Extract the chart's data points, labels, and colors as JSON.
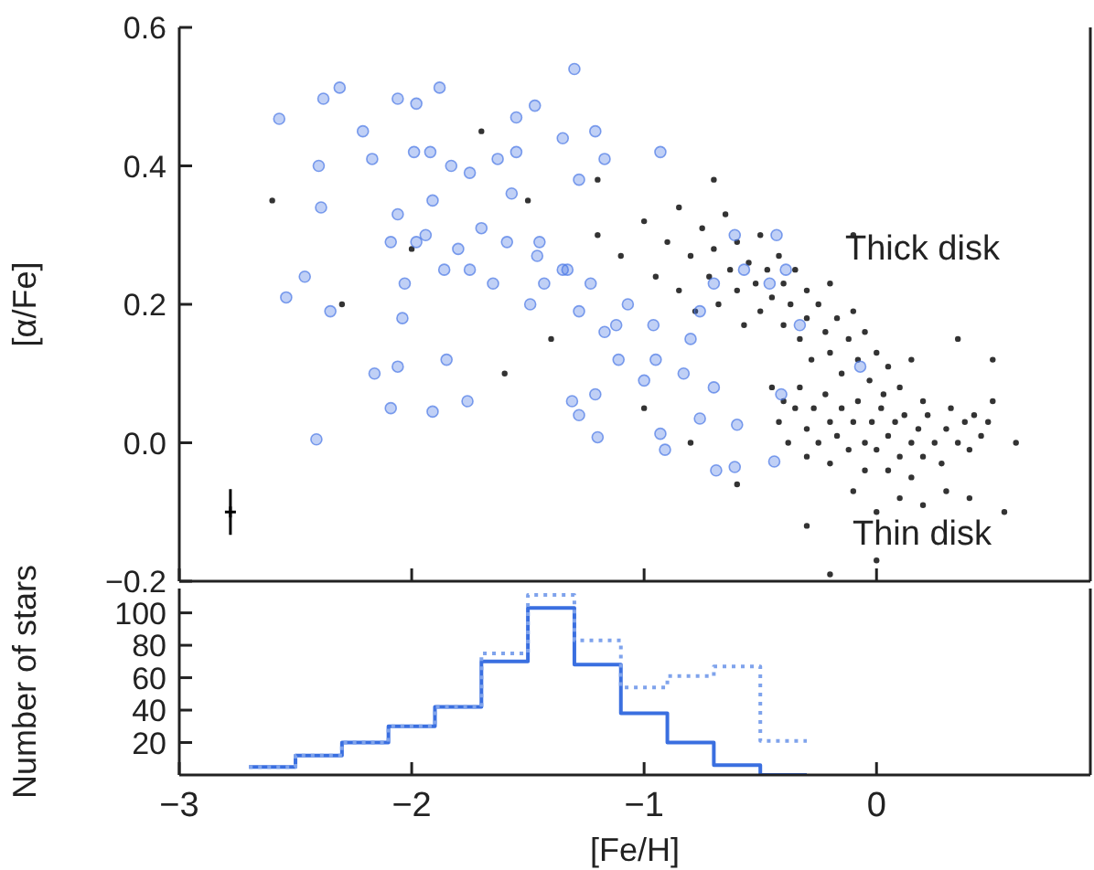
{
  "chart_data": [
    {
      "type": "scatter",
      "ylabel": "[α/Fe]",
      "xlim": [
        -3,
        0.92
      ],
      "ylim": [
        -0.2,
        0.6
      ],
      "xticks": [
        -3,
        -2,
        -1,
        0
      ],
      "yticks": [
        {
          "value": -0.2,
          "label": "−0.2"
        },
        {
          "value": 0,
          "label": "0.0"
        },
        0.2,
        0.4,
        0.6
      ],
      "tick_labels": "y",
      "marker": "circle",
      "annotations": [
        "Thick disk",
        "Thin disk"
      ],
      "series": [
        {
          "color": "#000000",
          "x": [
            -1.2,
            -1.1,
            -1.0,
            -0.95,
            -0.9,
            -0.85,
            -0.85,
            -0.8,
            -0.78,
            -0.75,
            -0.72,
            -0.7,
            -0.68,
            -0.65,
            -0.63,
            -0.6,
            -0.6,
            -0.57,
            -0.55,
            -0.52,
            -0.5,
            -0.5,
            -0.47,
            -0.45,
            -0.42,
            -0.4,
            -0.4,
            -0.37,
            -0.35,
            -0.33,
            -0.3,
            -0.3,
            -0.28,
            -0.25,
            -0.22,
            -0.2,
            -0.2,
            -0.17,
            -0.15,
            -0.12,
            -0.1,
            -0.08,
            -0.05,
            -0.03,
            0.0,
            0.03,
            0.05,
            0.1,
            0.15,
            0.2,
            -0.45,
            -0.42,
            -0.4,
            -0.38,
            -0.35,
            -0.33,
            -0.3,
            -0.3,
            -0.27,
            -0.25,
            -0.22,
            -0.2,
            -0.2,
            -0.17,
            -0.15,
            -0.12,
            -0.1,
            -0.08,
            -0.05,
            -0.05,
            -0.02,
            0.0,
            0.02,
            0.05,
            0.05,
            0.08,
            0.1,
            0.12,
            0.15,
            0.15,
            0.18,
            0.2,
            0.22,
            0.25,
            0.28,
            0.3,
            0.32,
            0.35,
            0.38,
            0.4,
            0.42,
            0.45,
            0.48,
            0.5,
            0.3,
            0.1,
            0.0,
            0.2,
            0.4,
            -0.1,
            -2.6,
            -2.3,
            -2.0,
            -1.7,
            -1.5,
            -1.4,
            -1.6,
            -1.2,
            -1.0,
            -0.8,
            -0.6,
            -0.3,
            0.0,
            0.55,
            0.5,
            0.6,
            0.35,
            -0.1,
            -0.7,
            -0.2
          ],
          "values": [
            0.3,
            0.27,
            0.32,
            0.24,
            0.29,
            0.34,
            0.22,
            0.27,
            0.19,
            0.31,
            0.24,
            0.28,
            0.2,
            0.33,
            0.25,
            0.22,
            0.29,
            0.17,
            0.26,
            0.23,
            0.3,
            0.19,
            0.25,
            0.21,
            0.27,
            0.17,
            0.23,
            0.2,
            0.25,
            0.15,
            0.22,
            0.18,
            0.12,
            0.2,
            0.16,
            0.23,
            0.13,
            0.18,
            0.1,
            0.15,
            0.19,
            0.12,
            0.16,
            0.09,
            0.13,
            0.07,
            0.11,
            0.08,
            0.12,
            0.06,
            0.08,
            0.03,
            0.06,
            0.0,
            0.05,
            0.08,
            0.02,
            -0.02,
            0.05,
            0.0,
            0.07,
            0.03,
            -0.03,
            0.01,
            0.05,
            -0.01,
            0.03,
            0.06,
            0.0,
            -0.04,
            0.03,
            -0.01,
            0.05,
            0.01,
            -0.04,
            0.03,
            -0.02,
            0.04,
            0.0,
            -0.05,
            0.02,
            -0.02,
            0.04,
            0.0,
            -0.03,
            0.02,
            0.05,
            0.0,
            0.03,
            -0.01,
            0.04,
            0.01,
            0.03,
            0.06,
            -0.07,
            -0.08,
            -0.1,
            -0.09,
            -0.08,
            -0.07,
            0.35,
            0.2,
            0.28,
            0.45,
            0.35,
            0.15,
            0.1,
            0.38,
            0.05,
            0.0,
            -0.06,
            -0.12,
            -0.17,
            -0.1,
            0.12,
            0.0,
            0.15,
            0.3,
            0.38,
            -0.19
          ]
        },
        {
          "color": "#4a78e6",
          "x": [
            -2.57,
            -2.38,
            -2.31,
            -2.06,
            -1.98,
            -1.88,
            -1.3,
            -1.47,
            -1.55,
            -2.21,
            -2.4,
            -2.39,
            -2.54,
            -2.46,
            -2.35,
            -2.41,
            -2.16,
            -2.09,
            -2.06,
            -1.91,
            -1.85,
            -1.76,
            -2.04,
            -2.03,
            -2.17,
            -1.99,
            -1.92,
            -1.83,
            -1.75,
            -1.63,
            -1.55,
            -1.35,
            -1.21,
            -1.17,
            -0.93,
            -1.28,
            -1.57,
            -1.91,
            -2.06,
            -1.94,
            -1.98,
            -2.09,
            -1.8,
            -1.7,
            -1.59,
            -1.45,
            -1.33,
            -1.23,
            -1.12,
            -1.43,
            -1.49,
            -1.28,
            -1.17,
            -1.07,
            -0.96,
            -0.95,
            -1.0,
            -1.31,
            -1.28,
            -1.2,
            -1.21,
            -1.11,
            -0.93,
            -0.91,
            -0.83,
            -0.76,
            -0.69,
            -0.61,
            -0.44,
            -0.6,
            -0.7,
            -0.8,
            -0.76,
            -0.7,
            -0.61,
            -0.57,
            -0.46,
            -0.43,
            -0.39,
            -0.41,
            -0.33,
            -0.07,
            -1.35,
            -1.46,
            -1.65,
            -1.75,
            -1.86
          ],
          "values": [
            0.468,
            0.497,
            0.513,
            0.497,
            0.49,
            0.513,
            0.54,
            0.487,
            0.47,
            0.45,
            0.4,
            0.34,
            0.21,
            0.24,
            0.19,
            0.005,
            0.1,
            0.05,
            0.11,
            0.045,
            0.12,
            0.06,
            0.18,
            0.23,
            0.41,
            0.42,
            0.42,
            0.4,
            0.39,
            0.41,
            0.42,
            0.44,
            0.45,
            0.41,
            0.42,
            0.38,
            0.36,
            0.35,
            0.33,
            0.3,
            0.29,
            0.29,
            0.28,
            0.31,
            0.29,
            0.29,
            0.25,
            0.23,
            0.17,
            0.23,
            0.2,
            0.19,
            0.16,
            0.2,
            0.17,
            0.12,
            0.09,
            0.06,
            0.04,
            0.008,
            0.07,
            0.12,
            0.013,
            -0.01,
            0.1,
            0.035,
            -0.04,
            -0.035,
            -0.027,
            0.026,
            0.08,
            0.15,
            0.19,
            0.23,
            0.3,
            0.25,
            0.23,
            0.3,
            0.25,
            0.07,
            0.17,
            0.11,
            0.25,
            0.27,
            0.23,
            0.25,
            0.25
          ]
        },
        {
          "color": "#000000",
          "x": [
            -2.78
          ],
          "values": [
            -0.1
          ],
          "errors": [
            0.033
          ],
          "marker": "cross"
        }
      ]
    },
    {
      "type": "histogram",
      "xlabel": "[Fe/H]",
      "ylabel": "Number of stars",
      "xlim": [
        -3,
        0.92
      ],
      "ylim": [
        0,
        115
      ],
      "xticks": [
        {
          "value": -3,
          "label": "−3"
        },
        {
          "value": -2,
          "label": "−2"
        },
        {
          "value": -1,
          "label": "−1"
        },
        0
      ],
      "yticks": [
        20,
        40,
        60,
        80,
        100
      ],
      "bins": [
        -2.7,
        -2.5,
        -2.3,
        -2.1,
        -1.9,
        -1.7,
        -1.5,
        -1.3,
        -1.1,
        -0.9,
        -0.7,
        -0.5,
        -0.3
      ],
      "series": [
        {
          "color": "#3a6fe0",
          "line_style": "solid",
          "values": [
            5,
            12,
            20,
            30,
            42,
            70,
            103,
            68,
            38,
            20,
            6,
            0
          ]
        },
        {
          "color": "#7fa3ec",
          "line_style": "dotted",
          "values": [
            5,
            12,
            20,
            30,
            42,
            75,
            111,
            83,
            54,
            61,
            67,
            21
          ]
        }
      ]
    }
  ]
}
